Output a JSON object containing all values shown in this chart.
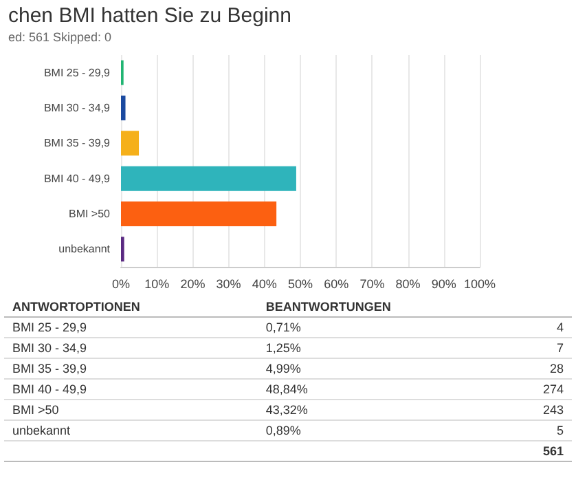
{
  "chart_data": {
    "type": "bar",
    "orientation": "horizontal",
    "title": "chen BMI hatten Sie zu Beginn",
    "subtitle": "ed: 561   Skipped: 0",
    "categories": [
      "BMI 25 - 29,9",
      "BMI 30 - 34,9",
      "BMI 35 - 39,9",
      "BMI 40 - 49,9",
      "BMI >50",
      "unbekannt"
    ],
    "values": [
      0.71,
      1.25,
      4.99,
      48.84,
      43.32,
      0.89
    ],
    "colors": [
      "#21b573",
      "#1b4aa0",
      "#f5b01a",
      "#2fb4bb",
      "#fc6011",
      "#5a2a82"
    ],
    "xlim": [
      0,
      100
    ],
    "xticks": [
      {
        "value": 0,
        "label": "0%"
      },
      {
        "value": 10,
        "label": "10%"
      },
      {
        "value": 20,
        "label": "20%"
      },
      {
        "value": 30,
        "label": "30%"
      },
      {
        "value": 40,
        "label": "40%"
      },
      {
        "value": 50,
        "label": "50%"
      },
      {
        "value": 60,
        "label": "60%"
      },
      {
        "value": 70,
        "label": "70%"
      },
      {
        "value": 80,
        "label": "80%"
      },
      {
        "value": 90,
        "label": "90%"
      },
      {
        "value": 100,
        "label": "100%"
      }
    ],
    "grid": "x",
    "annotations": [
      "ANTWORTOPTIONEN",
      "BEANTWORTUNGEN",
      "0,71%",
      "1,25%",
      "4,99%",
      "48,84%",
      "43,32%",
      "0,89%",
      "4",
      "7",
      "28",
      "274",
      "243",
      "5",
      "561"
    ]
  }
}
